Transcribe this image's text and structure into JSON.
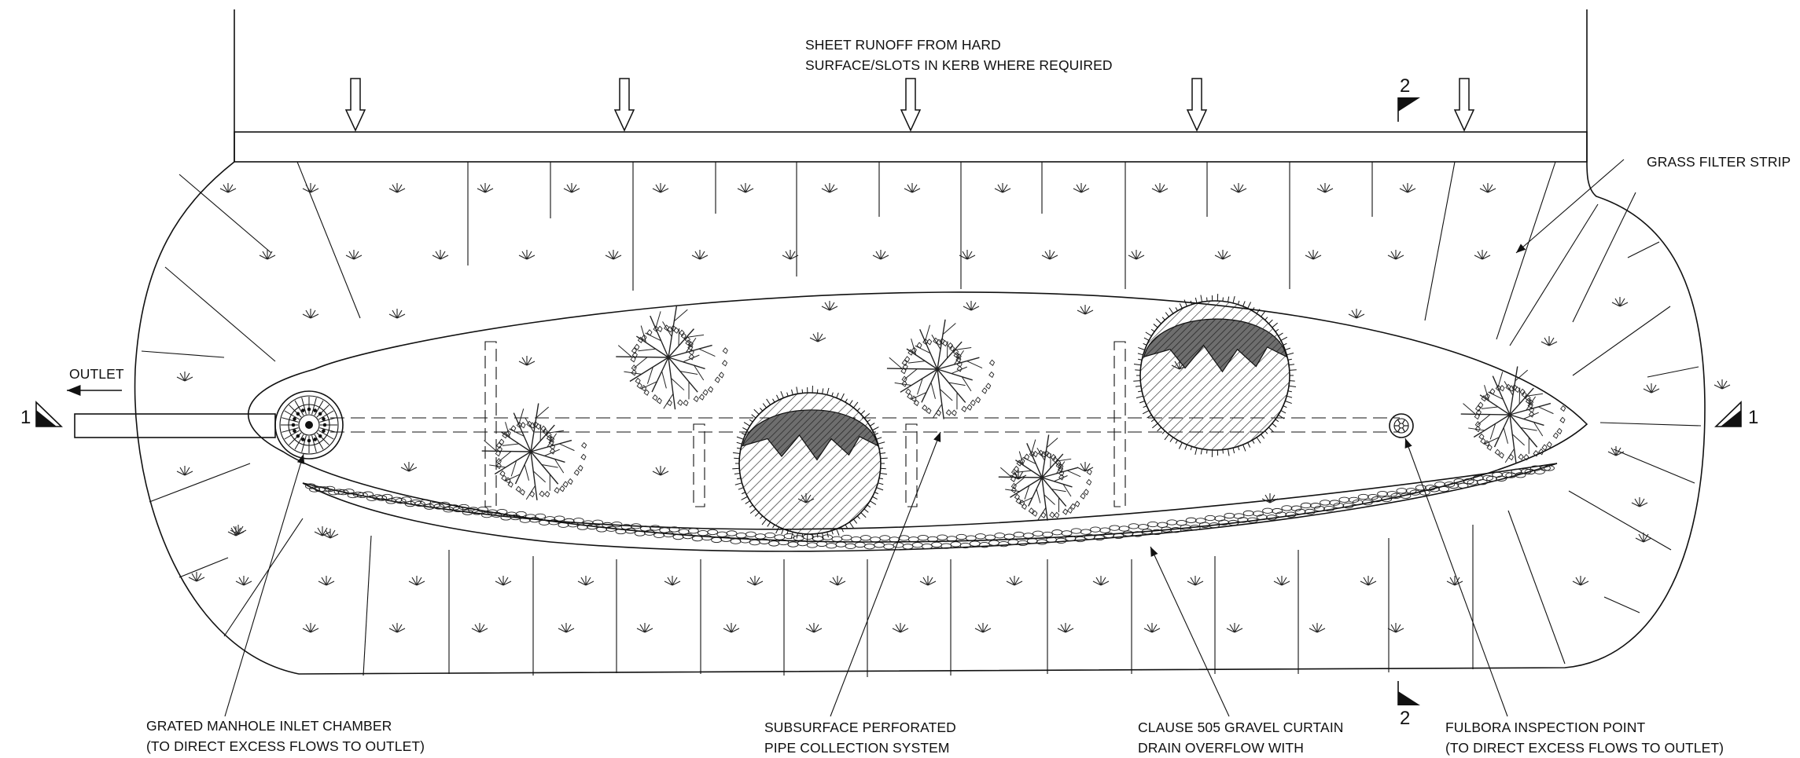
{
  "labels": {
    "sheet_runoff_1": "SHEET RUNOFF FROM HARD",
    "sheet_runoff_2": "SURFACE/SLOTS IN KERB WHERE REQUIRED",
    "grass_filter": "GRASS FILTER STRIP",
    "outlet": "OUTLET",
    "manhole_1": "GRATED MANHOLE INLET CHAMBER",
    "manhole_2": "(TO DIRECT EXCESS FLOWS TO OUTLET)",
    "pipe_1": "SUBSURFACE PERFORATED",
    "pipe_2": "PIPE COLLECTION SYSTEM",
    "gravel_1": "CLAUSE 505 GRAVEL CURTAIN",
    "gravel_2": "DRAIN OVERFLOW WITH",
    "fulbora_1": "FULBORA INSPECTION POINT",
    "fulbora_2": "(TO DIRECT EXCESS FLOWS TO OUTLET)"
  },
  "section_markers": {
    "left": "1",
    "right": "1",
    "top": "2",
    "bottom": "2"
  },
  "colors": {
    "ink": "#111111",
    "background": "#ffffff",
    "canopy_dark": "#6e6e6e"
  }
}
